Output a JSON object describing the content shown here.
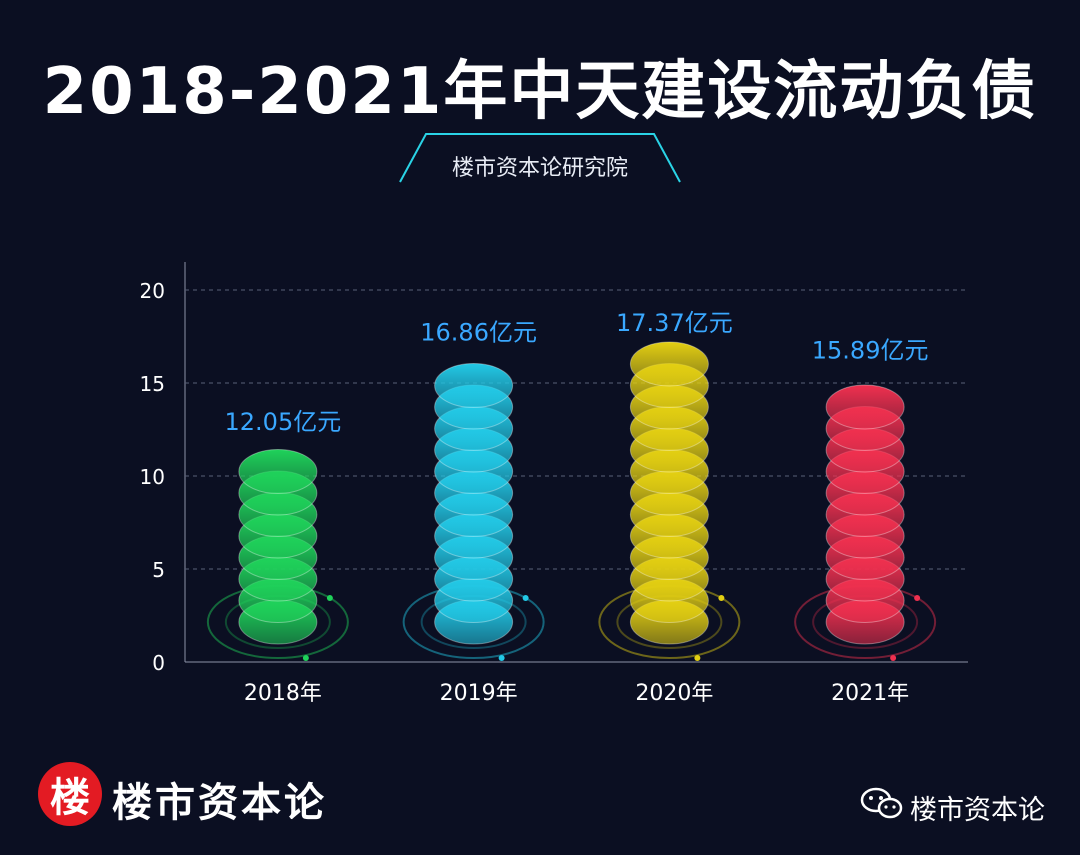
{
  "title": "2018-2021年中天建设流动负债",
  "subtitle": "楼市资本论研究院",
  "footer": {
    "logo_char": "楼",
    "brand": "楼市资本论",
    "wechat_name": "楼市资本论"
  },
  "chart_data": {
    "type": "bar",
    "title": "2018-2021年中天建设流动负债",
    "xlabel": "",
    "ylabel": "",
    "ylim": [
      0,
      20
    ],
    "yticks": [
      "0",
      "5",
      "10",
      "15",
      "20"
    ],
    "grid": true,
    "categories": [
      "2018年",
      "2019年",
      "2020年",
      "2021年"
    ],
    "values": [
      12.05,
      16.86,
      17.37,
      15.89
    ],
    "data_labels": [
      "12.05亿元",
      "16.86亿元",
      "17.37亿元",
      "15.89亿元"
    ],
    "colors": [
      "#1fd25a",
      "#22c9e6",
      "#e3cf12",
      "#f0304f"
    ]
  }
}
